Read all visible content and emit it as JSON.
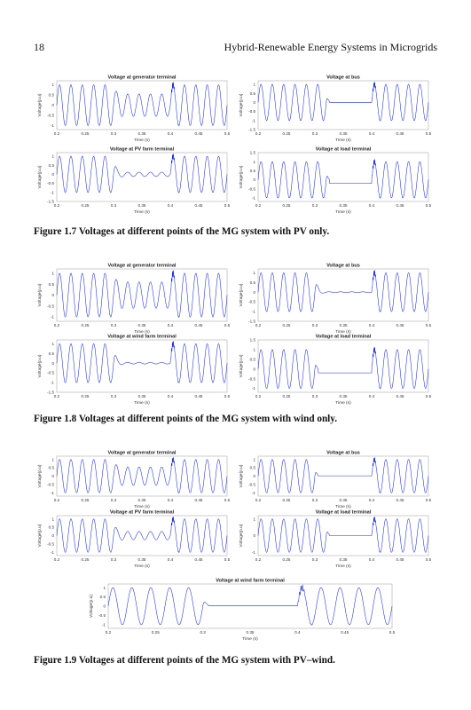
{
  "header": {
    "page_number": "18",
    "book_title": "Hybrid-Renewable Energy Systems in Microgrids"
  },
  "figures": [
    {
      "caption": "Figure 1.7  Voltages at different points of the MG system with PV only.",
      "plots": [
        {
          "title": "Voltage at generator terminal",
          "ylabel": "Voltage(p.u)",
          "xlabel": "Time (s)",
          "xticks": [
            "0.2",
            "0.25",
            "0.3",
            "0.35",
            "0.4",
            "0.45",
            "0.5"
          ],
          "yticks": [
            "1",
            "0.5",
            "0",
            "-0.5",
            "-1"
          ],
          "ymin": -1.2,
          "ymax": 1.2,
          "fault": {
            "start": 0.3,
            "end": 0.4,
            "level": 0.55,
            "style": "reduced"
          }
        },
        {
          "title": "Voltage at bus",
          "ylabel": "Voltage(p.u)",
          "xlabel": "Time (s)",
          "xticks": [
            "0.2",
            "0.25",
            "0.3",
            "0.35",
            "0.4",
            "0.45",
            "0.5"
          ],
          "yticks": [
            "1",
            "0.5",
            "0",
            "-0.5",
            "-1",
            "-1.5"
          ],
          "ymin": -1.5,
          "ymax": 1.2,
          "fault": {
            "start": 0.32,
            "end": 0.4,
            "level": 0,
            "style": "flat"
          }
        },
        {
          "title": "Voltage at PV farm terminal",
          "ylabel": "Voltage(p.u)",
          "xlabel": "Time (s)",
          "xticks": [
            "0.2",
            "0.25",
            "0.3",
            "0.35",
            "0.4",
            "0.45",
            "0.5"
          ],
          "yticks": [
            "1",
            "0.5",
            "0",
            "-0.5",
            "-1",
            "-1.5"
          ],
          "ymin": -1.5,
          "ymax": 1.2,
          "fault": {
            "start": 0.3,
            "end": 0.4,
            "level": 0.12,
            "style": "reduced"
          }
        },
        {
          "title": "Voltage at load terminal",
          "ylabel": "Voltage(p.u)",
          "xlabel": "Time (s)",
          "xticks": [
            "0.2",
            "0.25",
            "0.3",
            "0.35",
            "0.4",
            "0.45",
            "0.5"
          ],
          "yticks": [
            "1.5",
            "1",
            "0.5",
            "0",
            "-0.5",
            "-1"
          ],
          "ymin": -1.2,
          "ymax": 1.5,
          "fault": {
            "start": 0.32,
            "end": 0.4,
            "level": -0.2,
            "style": "flat"
          }
        }
      ]
    },
    {
      "caption": "Figure 1.8  Voltages at different points of the MG system with wind only.",
      "plots": [
        {
          "title": "Voltage at generator terminal",
          "ylabel": "Voltage(p.u)",
          "xlabel": "Time (s)",
          "xticks": [
            "0.2",
            "0.25",
            "0.3",
            "0.35",
            "0.4",
            "0.45",
            "0.5"
          ],
          "yticks": [
            "1",
            "0.5",
            "0",
            "-0.5",
            "-1"
          ],
          "ymin": -1.2,
          "ymax": 1.2,
          "fault": {
            "start": 0.3,
            "end": 0.4,
            "level": 0.6,
            "style": "reduced"
          }
        },
        {
          "title": "Voltage at bus",
          "ylabel": "Voltage(p.u)",
          "xlabel": "Time (s)",
          "xticks": [
            "0.2",
            "0.25",
            "0.3",
            "0.35",
            "0.4",
            "0.45",
            "0.5"
          ],
          "yticks": [
            "1",
            "0.5",
            "0",
            "-0.5",
            "-1",
            "-1.5"
          ],
          "ymin": -1.5,
          "ymax": 1.2,
          "fault": {
            "start": 0.3,
            "end": 0.4,
            "level": 0.02,
            "style": "reduced"
          }
        },
        {
          "title": "Voltage at  wind farm terminal",
          "ylabel": "Voltage(p.u)",
          "xlabel": "Time (s)",
          "xticks": [
            "0.2",
            "0.25",
            "0.3",
            "0.35",
            "0.4",
            "0.45",
            "0.5"
          ],
          "yticks": [
            "1",
            "0.5",
            "0",
            "-0.5",
            "-1",
            "-1.5"
          ],
          "ymin": -1.5,
          "ymax": 1.2,
          "fault": {
            "start": 0.3,
            "end": 0.4,
            "level": 0.04,
            "style": "reduced"
          }
        },
        {
          "title": "Voltage at load terminal",
          "ylabel": "Voltage(p.u)",
          "xlabel": "Time (s)",
          "xticks": [
            "0.2",
            "0.25",
            "0.3",
            "0.35",
            "0.4",
            "0.45",
            "0.5"
          ],
          "yticks": [
            "1.5",
            "1",
            "0.5",
            "0",
            "-0.5",
            "-1"
          ],
          "ymin": -1.2,
          "ymax": 1.5,
          "fault": {
            "start": 0.3,
            "end": 0.4,
            "level": -0.2,
            "style": "flat"
          }
        }
      ]
    },
    {
      "caption": "Figure 1.9  Voltages at different points of the MG system with PV–wind.",
      "plots": [
        {
          "title": "Voltage at generator terminal",
          "ylabel": "Voltage(p.u)",
          "xlabel": "Time (s)",
          "xticks": [
            "0.2",
            "0.25",
            "0.3",
            "0.35",
            "0.4",
            "0.45",
            "0.5"
          ],
          "yticks": [
            "1",
            "0.5",
            "0",
            "-0.5",
            "-1"
          ],
          "ymin": -1.2,
          "ymax": 1.2,
          "fault": {
            "start": 0.3,
            "end": 0.4,
            "level": 0.55,
            "style": "reduced"
          }
        },
        {
          "title": "Voltage at bus",
          "ylabel": "Voltage(p.u)",
          "xlabel": "Time (s)",
          "xticks": [
            "0.2",
            "0.25",
            "0.3",
            "0.35",
            "0.4",
            "0.45",
            "0.5"
          ],
          "yticks": [
            "1",
            "0.5",
            "0",
            "-0.5",
            "-1"
          ],
          "ymin": -1.2,
          "ymax": 1.2,
          "fault": {
            "start": 0.3,
            "end": 0.4,
            "level": 0.02,
            "style": "flat"
          }
        },
        {
          "title": "Voltage at PV farm terminal",
          "ylabel": "Voltage(p.u)",
          "xlabel": "Time (s)",
          "xticks": [
            "0.2",
            "0.25",
            "0.3",
            "0.35",
            "0.4",
            "0.45",
            "0.5"
          ],
          "yticks": [
            "1",
            "0.5",
            "0",
            "-0.5",
            "-1"
          ],
          "ymin": -1.2,
          "ymax": 1.2,
          "fault": {
            "start": 0.3,
            "end": 0.4,
            "level": 0.25,
            "style": "reduced"
          }
        },
        {
          "title": "Voltage at load terminal",
          "ylabel": "Voltage(p.u)",
          "xlabel": "Time (s)",
          "xticks": [
            "0.2",
            "0.25",
            "0.3",
            "0.35",
            "0.4",
            "0.45",
            "0.5"
          ],
          "yticks": [
            "1",
            "0",
            "-1"
          ],
          "ymin": -1.2,
          "ymax": 1.2,
          "fault": {
            "start": 0.32,
            "end": 0.4,
            "level": 0,
            "style": "flat"
          }
        },
        {
          "title": "Voltage at  wind farm terminal",
          "ylabel": "Voltage(p.u)",
          "xlabel": "Time (s)",
          "xticks": [
            "0.2",
            "0.25",
            "0.3",
            "0.35",
            "0.4",
            "0.45",
            "0.5"
          ],
          "yticks": [
            "1",
            "0.5",
            "0",
            "-0.5",
            "-1"
          ],
          "ymin": -1.2,
          "ymax": 1.2,
          "fault": {
            "start": 0.3,
            "end": 0.4,
            "level": 0.02,
            "style": "flat"
          }
        }
      ]
    }
  ],
  "chart_data": {
    "type": "line",
    "x_range": [
      0.2,
      0.5
    ],
    "signal": "sinusoidal voltage, amplitude 1 p.u., 50 Hz, disturbance between 0.3 s and 0.4 s",
    "frequency_hz": 50,
    "amplitude_pu": 1,
    "disturbance_interval_s": [
      0.3,
      0.4
    ],
    "colors": {
      "trace": "#1a2fd6",
      "frame": "#9a9a9a"
    }
  }
}
